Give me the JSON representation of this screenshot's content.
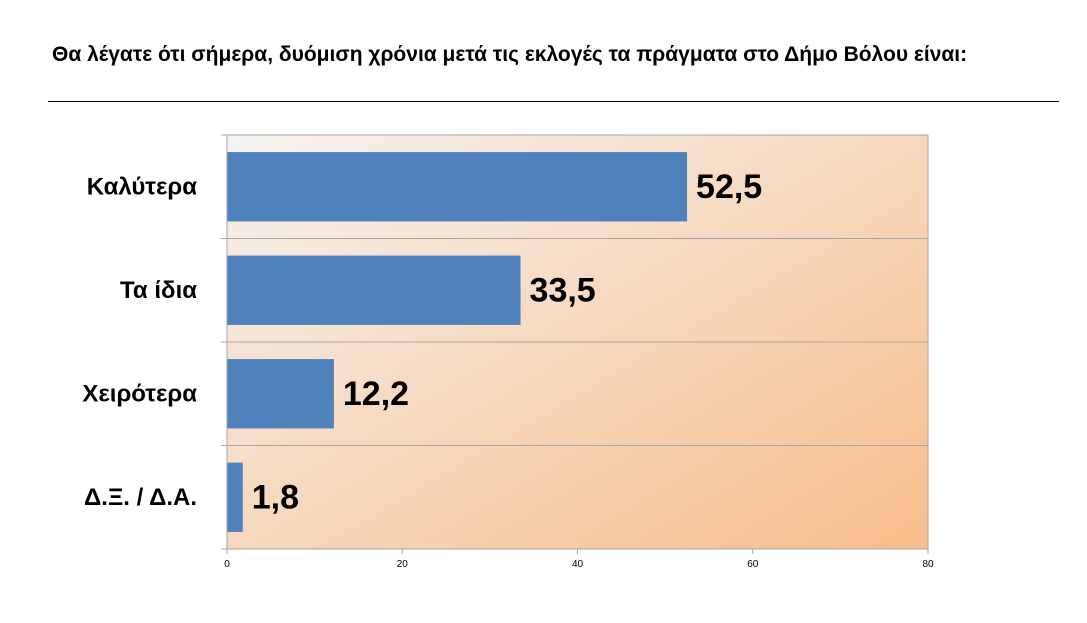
{
  "title": "Θα λέγατε ότι σήμερα, δυόμιση χρόνια μετά τις εκλογές τα πράγματα στο Δήμο Βόλου είναι:",
  "chart_data": {
    "type": "bar",
    "orientation": "horizontal",
    "title": "Θα λέγατε ότι σήμερα, δυόμιση χρόνια μετά τις εκλογές τα πράγματα στο Δήμο Βόλου είναι:",
    "categories": [
      "Καλύτερα",
      "Τα ίδια",
      "Χειρότερα",
      "Δ.Ξ. / Δ.Α."
    ],
    "values": [
      52.5,
      33.5,
      12.2,
      1.8
    ],
    "value_labels": [
      "52,5",
      "33,5",
      "12,2",
      "1,8"
    ],
    "xlim": [
      0,
      80
    ],
    "xticks": [
      0,
      20,
      40,
      60,
      80
    ],
    "grid": "horizontal separators between categories",
    "colors": {
      "bar": "#4F81BD",
      "background_start": "#F5F3F1",
      "background_end": "#F8BD8A",
      "gridline": "#A6A6A6"
    }
  }
}
